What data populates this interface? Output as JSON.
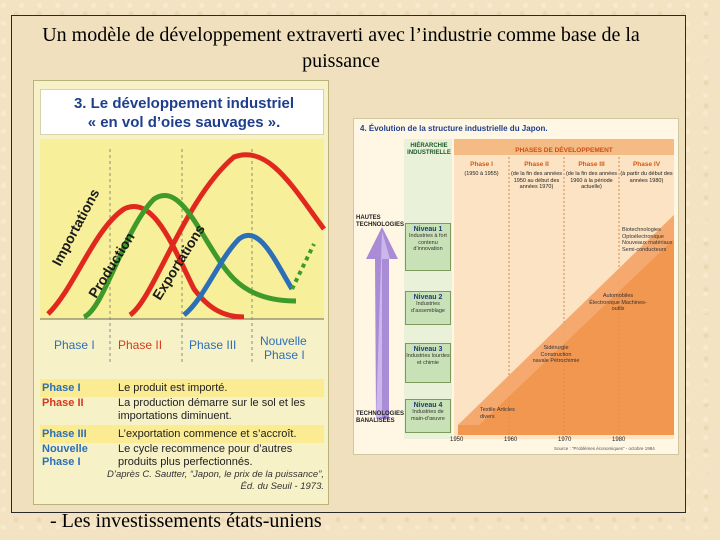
{
  "slide": {
    "title": "Un modèle de développement extraverti avec l’industrie comme base de la puissance",
    "caption": "- Les investissements états-uniens"
  },
  "figure_left": {
    "title_line1": "3. Le développement industriel",
    "title_line2": "« en vol d’oies sauvages ».",
    "curves": {
      "importations": "Importations",
      "production": "Production",
      "exportations": "Exportations"
    },
    "colors": {
      "importations": "#e0281e",
      "production": "#3f9a2a",
      "exportations": "#2d6fb7",
      "phase_blue": "#2d6fb7",
      "phase_red": "#d43a1e"
    },
    "phases_axis": {
      "phase1": "Phase I",
      "phase2": "Phase II",
      "phase3": "Phase III",
      "nouvelle1": "Nouvelle",
      "nouvelle2": "Phase I"
    },
    "legend": [
      {
        "phase": "Phase I",
        "text": "Le produit est importé."
      },
      {
        "phase": "Phase II",
        "text": "La production démarre sur le sol et les importations diminuent."
      },
      {
        "phase": "Phase III",
        "text": "L’exportation commence et s’accroît."
      },
      {
        "phase": "Nouvelle Phase I",
        "text": "Le cycle recommence pour d’autres produits plus perfectionnés."
      }
    ],
    "source_line1": "D’après C. Sautter, “Japon, le prix de la puissance”,",
    "source_line2": "Éd. du Seuil - 1973."
  },
  "figure_right": {
    "title": "4. Évolution de la structure industrielle du Japon.",
    "hierarchy_label1": "HIÉRARCHIE",
    "hierarchy_label2": "INDUSTRIELLE",
    "phases_label": "PHASES DE DÉVELOPPEMENT",
    "hautes1": "HAUTES",
    "hautes2": "TECHNOLOGIES",
    "banales1": "TECHNOLOGIES",
    "banales2": "BANALISÉES",
    "phases": [
      {
        "name": "Phase I",
        "sub": "(1950 à 1955)"
      },
      {
        "name": "Phase II",
        "sub": "(de la fin des années 1950 au début des années 1970)"
      },
      {
        "name": "Phase III",
        "sub": "(de la fin des années 1960 à la période actuelle)"
      },
      {
        "name": "Phase IV",
        "sub": "(à partir du début des années 1980)"
      }
    ],
    "niveaux": [
      {
        "name": "Niveau 1",
        "desc": "Industries à fort contenu d’innovation"
      },
      {
        "name": "Niveau 2",
        "desc": "Industries d’assemblage"
      },
      {
        "name": "Niveau 3",
        "desc": "Industries lourdes et chimie"
      },
      {
        "name": "Niveau 4",
        "desc": "Industries de main-d’œuvre"
      }
    ],
    "industries": {
      "textile": "Textile Articles divers",
      "siderurgie": "Sidérurgie Construction navale Pétrochimie",
      "auto": "Automobiles Électronique Machines-outils",
      "biotech": "Biotechnologies Optoélectronique Nouveaux matériaux Semi-conducteurs"
    },
    "years": [
      "1950",
      "1960",
      "1970",
      "1980"
    ],
    "source": "Source : “Problèmes économiques” - octobre 1984"
  }
}
